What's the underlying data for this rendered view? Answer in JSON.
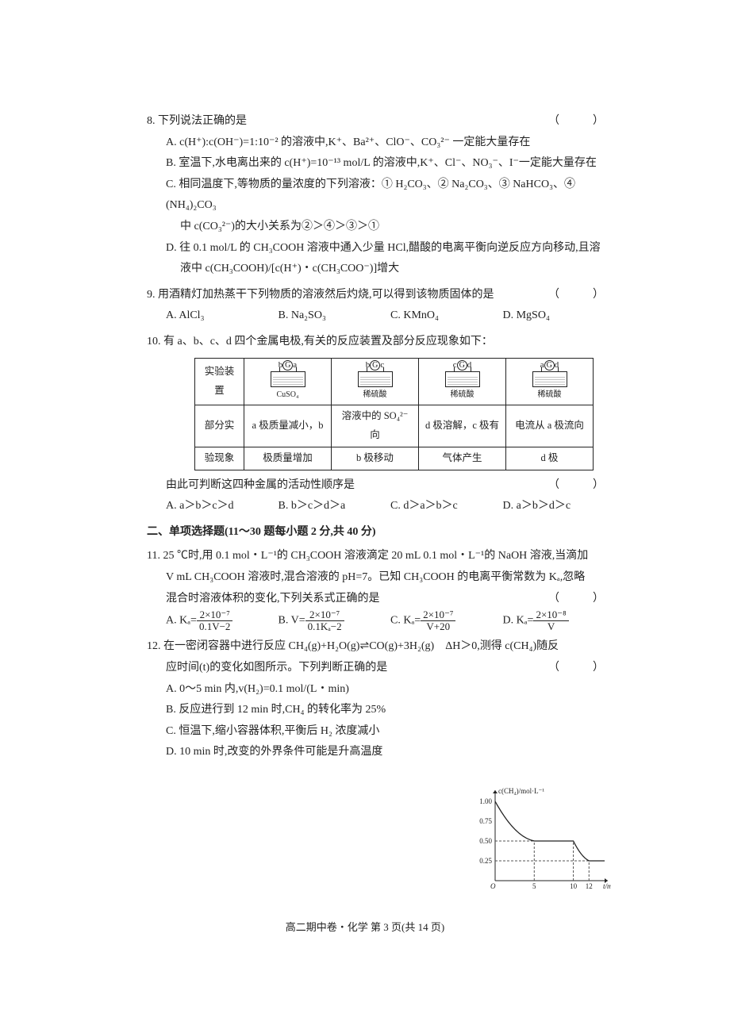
{
  "q8": {
    "num": "8.",
    "stem": "下列说法正确的是",
    "paren": "（　）",
    "A": "A. c(H⁺):c(OH⁻)=1:10⁻² 的溶液中,K⁺、Ba²⁺、ClO⁻、CO₃²⁻ 一定能大量存在",
    "B": "B. 室温下,水电离出来的 c(H⁺)=10⁻¹³ mol/L 的溶液中,K⁺、Cl⁻、NO₃⁻、I⁻一定能大量存在",
    "C1": "C. 相同温度下,等物质的量浓度的下列溶液：① H₂CO₃、② Na₂CO₃、③ NaHCO₃、④ (NH₄)₂CO₃",
    "C2": "中 c(CO₃²⁻)的大小关系为②＞④＞③＞①",
    "D1": "D. 往 0.1 mol/L 的 CH₃COOH 溶液中通入少量 HCl,醋酸的电离平衡向逆反应方向移动,且溶",
    "D2": "液中 c(CH₃COOH)/[c(H⁺)・c(CH₃COO⁻)]增大"
  },
  "q9": {
    "num": "9.",
    "stem": "用酒精灯加热蒸干下列物质的溶液然后灼烧,可以得到该物质固体的是",
    "paren": "（　）",
    "A": "A. AlCl₃",
    "B": "B. Na₂SO₃",
    "C": "C. KMnO₄",
    "D": "D. MgSO₄"
  },
  "q10": {
    "num": "10.",
    "stem": "有 a、b、c、d 四个金属电极,有关的反应装置及部分反应现象如下：",
    "table": {
      "row1": [
        "实验装置"
      ],
      "dev_labels": [
        [
          "b",
          "a",
          "CuSO₄"
        ],
        [
          "b",
          "c",
          "稀硫酸"
        ],
        [
          "c",
          "d",
          "稀硫酸"
        ],
        [
          "a",
          "d",
          "稀硫酸"
        ]
      ],
      "row2h": "部分实",
      "row2": [
        "a 极质量减小，b",
        "溶液中的 SO₄²⁻ 向",
        "d 极溶解，c 极有",
        "电流从 a 极流向"
      ],
      "row3h": "验现象",
      "row3": [
        "极质量增加",
        "b 极移动",
        "气体产生",
        "d 极"
      ]
    },
    "tail": "由此可判断这四种金属的活动性顺序是",
    "paren": "（　）",
    "A": "A. a＞b＞c＞d",
    "B": "B. b＞c＞d＞a",
    "C": "C. d＞a＞b＞c",
    "D": "D. a＞b＞d＞c"
  },
  "sectionII": "二、单项选择题(11～30 题每小题 2 分,共 40 分)",
  "q11": {
    "num": "11.",
    "stem1": "25 ℃时,用 0.1 mol・L⁻¹的 CH₃COOH 溶液滴定 20 mL 0.1 mol・L⁻¹的 NaOH 溶液,当滴加",
    "stem2": "V mL CH₃COOH 溶液时,混合溶液的 pH=7。已知 CH₃COOH 的电离平衡常数为 Kₐ,忽略",
    "stem3": "混合时溶液体积的变化,下列关系式正确的是",
    "paren": "（　）",
    "A_pre": "A. Kₐ=",
    "A_num": "2×10⁻⁷",
    "A_den": "0.1V−2",
    "B_pre": "B. V=",
    "B_num": "2×10⁻⁷",
    "B_den": "0.1Kₐ−2",
    "C_pre": "C. Kₐ=",
    "C_num": "2×10⁻⁷",
    "C_den": "V+20",
    "D_pre": "D. Kₐ=",
    "D_num": "2×10⁻⁸",
    "D_den": "V"
  },
  "q12": {
    "num": "12.",
    "stem1": "在一密闭容器中进行反应 CH₄(g)+H₂O(g)⇌CO(g)+3H₂(g)　ΔH＞0,测得 c(CH₄)随反",
    "stem2": "应时间(t)的变化如图所示。下列判断正确的是",
    "paren": "（　）",
    "A": "A. 0～5 min 内,v(H₂)=0.1 mol/(L・min)",
    "B": "B. 反应进行到 12 min 时,CH₄ 的转化率为 25%",
    "C": "C. 恒温下,缩小容器体积,平衡后 H₂ 浓度减小",
    "D": "D. 10 min 时,改变的外界条件可能是升高温度"
  },
  "chart": {
    "ylabel": "c(CH₄)/mol·L⁻¹",
    "xlabel": "t/min",
    "xticks": [
      0,
      5,
      10,
      12
    ],
    "yticks": [
      0.25,
      0.5,
      0.75,
      1.0
    ],
    "xlim": [
      0,
      14
    ],
    "ylim": [
      0,
      1.1
    ],
    "axis_color": "#222222",
    "dash_color": "#555555",
    "line_color": "#222222",
    "points": [
      [
        0,
        1.0
      ],
      [
        5,
        0.5
      ],
      [
        10,
        0.5
      ],
      [
        12,
        0.25
      ],
      [
        14,
        0.25
      ]
    ]
  },
  "footer": "高二期中卷・化学 第 3 页(共 14 页)"
}
